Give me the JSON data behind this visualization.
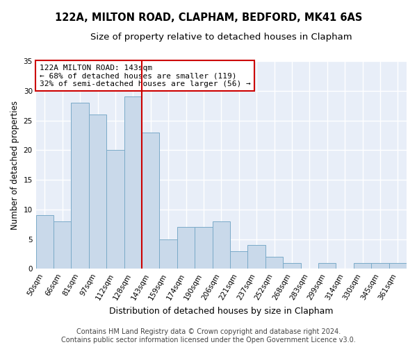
{
  "title": "122A, MILTON ROAD, CLAPHAM, BEDFORD, MK41 6AS",
  "subtitle": "Size of property relative to detached houses in Clapham",
  "xlabel": "Distribution of detached houses by size in Clapham",
  "ylabel": "Number of detached properties",
  "categories": [
    "50sqm",
    "66sqm",
    "81sqm",
    "97sqm",
    "112sqm",
    "128sqm",
    "143sqm",
    "159sqm",
    "174sqm",
    "190sqm",
    "206sqm",
    "221sqm",
    "237sqm",
    "252sqm",
    "268sqm",
    "283sqm",
    "299sqm",
    "314sqm",
    "330sqm",
    "345sqm",
    "361sqm"
  ],
  "values": [
    9,
    8,
    28,
    26,
    20,
    29,
    23,
    5,
    7,
    7,
    8,
    3,
    4,
    2,
    1,
    0,
    1,
    0,
    1,
    1,
    1
  ],
  "bar_color": "#c9d9ea",
  "bar_edge_color": "#7aaac8",
  "highlight_line_color": "#cc0000",
  "highlight_line_index": 6,
  "annotation_text": "122A MILTON ROAD: 143sqm\n← 68% of detached houses are smaller (119)\n32% of semi-detached houses are larger (56) →",
  "annotation_box_color": "#ffffff",
  "annotation_box_edge_color": "#cc0000",
  "ylim": [
    0,
    35
  ],
  "yticks": [
    0,
    5,
    10,
    15,
    20,
    25,
    30,
    35
  ],
  "background_color": "#e8eef8",
  "footer_line1": "Contains HM Land Registry data © Crown copyright and database right 2024.",
  "footer_line2": "Contains public sector information licensed under the Open Government Licence v3.0.",
  "title_fontsize": 10.5,
  "subtitle_fontsize": 9.5,
  "xlabel_fontsize": 9,
  "ylabel_fontsize": 8.5,
  "tick_fontsize": 7.5,
  "annotation_fontsize": 8,
  "footer_fontsize": 7
}
